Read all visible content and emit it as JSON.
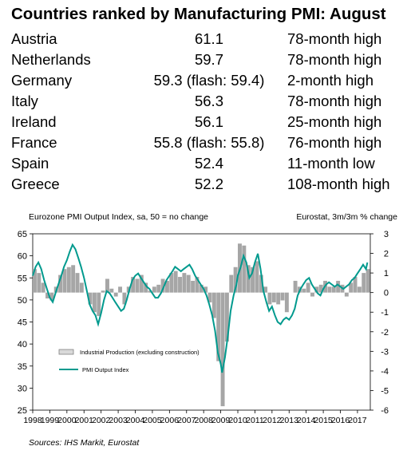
{
  "title": "Countries ranked by Manufacturing PMI: August",
  "rankings": [
    {
      "country": "Austria",
      "value": "61.1",
      "note": "78-month high"
    },
    {
      "country": "Netherlands",
      "value": "59.7",
      "note": "78-month high"
    },
    {
      "country": "Germany",
      "value": "59.3 (flash: 59.4)",
      "note": "2-month high"
    },
    {
      "country": "Italy",
      "value": "56.3",
      "note": "78-month high"
    },
    {
      "country": "Ireland",
      "value": "56.1",
      "note": "25-month high"
    },
    {
      "country": "France",
      "value": "55.8 (flash: 55.8)",
      "note": "76-month high"
    },
    {
      "country": "Spain",
      "value": "52.4",
      "note": "11-month low"
    },
    {
      "country": "Greece",
      "value": "52.2",
      "note": "108-month high"
    }
  ],
  "source": "Sources: IHS Markit, Eurostat",
  "chart_data": {
    "type": "bar+line",
    "title_left": "Eurozone PMI Output Index, sa, 50 = no change",
    "title_right": "Eurostat, 3m/3m % change",
    "x_ticks": [
      "1998",
      "1999",
      "2000",
      "2001",
      "2002",
      "2003",
      "2004",
      "2005",
      "2006",
      "2007",
      "2008",
      "2009",
      "2010",
      "2011",
      "2012",
      "2013",
      "2014",
      "2015",
      "2016",
      "2017"
    ],
    "x_range": [
      1998,
      2017.75
    ],
    "y_left": {
      "range": [
        25,
        65
      ],
      "ticks": [
        25,
        30,
        35,
        40,
        45,
        50,
        55,
        60,
        65
      ]
    },
    "y_right": {
      "range": [
        -6,
        3
      ],
      "ticks": [
        -6,
        -5,
        -4,
        -3,
        -2,
        -1,
        0,
        1,
        2,
        3
      ]
    },
    "legend": [
      "Industrial Production (excluding construction)",
      "PMI Output Index"
    ],
    "legend_position": "lower-left",
    "colors": {
      "bars": "#a6a6a6",
      "line": "#009a8e"
    },
    "series": [
      {
        "name": "Industrial Production (excluding construction)",
        "axis": "right",
        "kind": "bar",
        "points": [
          [
            1998.0,
            1.2
          ],
          [
            1998.25,
            1.0
          ],
          [
            1998.5,
            0.5
          ],
          [
            1998.75,
            -0.3
          ],
          [
            1999.0,
            -0.4
          ],
          [
            1999.25,
            0.3
          ],
          [
            1999.5,
            0.9
          ],
          [
            1999.75,
            1.2
          ],
          [
            2000.0,
            1.3
          ],
          [
            2000.25,
            1.4
          ],
          [
            2000.5,
            1.0
          ],
          [
            2000.75,
            0.5
          ],
          [
            2001.0,
            0.0
          ],
          [
            2001.25,
            -0.6
          ],
          [
            2001.5,
            -1.0
          ],
          [
            2001.75,
            -1.2
          ],
          [
            2002.0,
            0.1
          ],
          [
            2002.25,
            0.7
          ],
          [
            2002.5,
            0.2
          ],
          [
            2002.75,
            -0.2
          ],
          [
            2003.0,
            0.3
          ],
          [
            2003.25,
            -0.6
          ],
          [
            2003.5,
            0.3
          ],
          [
            2003.75,
            0.8
          ],
          [
            2004.0,
            0.7
          ],
          [
            2004.25,
            0.9
          ],
          [
            2004.5,
            0.5
          ],
          [
            2004.75,
            0.1
          ],
          [
            2005.0,
            0.3
          ],
          [
            2005.25,
            0.4
          ],
          [
            2005.5,
            0.7
          ],
          [
            2005.75,
            0.6
          ],
          [
            2006.0,
            1.0
          ],
          [
            2006.25,
            1.1
          ],
          [
            2006.5,
            0.8
          ],
          [
            2006.75,
            1.0
          ],
          [
            2007.0,
            0.9
          ],
          [
            2007.25,
            0.6
          ],
          [
            2007.5,
            0.8
          ],
          [
            2007.75,
            0.4
          ],
          [
            2008.0,
            0.3
          ],
          [
            2008.25,
            -0.5
          ],
          [
            2008.5,
            -1.3
          ],
          [
            2008.75,
            -3.5
          ],
          [
            2009.0,
            -5.8
          ],
          [
            2009.25,
            -2.5
          ],
          [
            2009.5,
            0.9
          ],
          [
            2009.75,
            1.3
          ],
          [
            2010.0,
            2.5
          ],
          [
            2010.25,
            2.4
          ],
          [
            2010.5,
            1.4
          ],
          [
            2010.75,
            1.3
          ],
          [
            2011.0,
            1.6
          ],
          [
            2011.25,
            0.9
          ],
          [
            2011.5,
            0.3
          ],
          [
            2011.75,
            -0.6
          ],
          [
            2012.0,
            -0.5
          ],
          [
            2012.25,
            -0.6
          ],
          [
            2012.5,
            -0.4
          ],
          [
            2012.75,
            -1.0
          ],
          [
            2013.0,
            0.0
          ],
          [
            2013.25,
            0.6
          ],
          [
            2013.5,
            0.3
          ],
          [
            2013.75,
            0.2
          ],
          [
            2014.0,
            0.5
          ],
          [
            2014.25,
            -0.2
          ],
          [
            2014.5,
            0.3
          ],
          [
            2014.75,
            0.4
          ],
          [
            2015.0,
            0.6
          ],
          [
            2015.25,
            0.3
          ],
          [
            2015.5,
            0.3
          ],
          [
            2015.75,
            0.6
          ],
          [
            2016.0,
            0.4
          ],
          [
            2016.25,
            -0.2
          ],
          [
            2016.5,
            0.5
          ],
          [
            2016.75,
            0.8
          ],
          [
            2017.0,
            0.3
          ],
          [
            2017.25,
            1.0
          ],
          [
            2017.5,
            1.2
          ]
        ]
      },
      {
        "name": "PMI Output Index",
        "axis": "left",
        "kind": "line",
        "points": [
          [
            1998.0,
            55.5
          ],
          [
            1998.17,
            57.5
          ],
          [
            1998.33,
            58.5
          ],
          [
            1998.5,
            57.0
          ],
          [
            1998.67,
            54.5
          ],
          [
            1998.83,
            52.5
          ],
          [
            1999.0,
            50.5
          ],
          [
            1999.17,
            49.5
          ],
          [
            1999.33,
            51.5
          ],
          [
            1999.5,
            53.5
          ],
          [
            1999.67,
            55.5
          ],
          [
            1999.83,
            57.5
          ],
          [
            2000.0,
            59.0
          ],
          [
            2000.17,
            61.0
          ],
          [
            2000.33,
            62.5
          ],
          [
            2000.5,
            61.5
          ],
          [
            2000.67,
            59.5
          ],
          [
            2000.83,
            57.5
          ],
          [
            2001.0,
            55.0
          ],
          [
            2001.17,
            52.0
          ],
          [
            2001.33,
            49.0
          ],
          [
            2001.5,
            47.5
          ],
          [
            2001.67,
            46.5
          ],
          [
            2001.83,
            44.5
          ],
          [
            2002.0,
            47.0
          ],
          [
            2002.17,
            50.0
          ],
          [
            2002.33,
            52.0
          ],
          [
            2002.5,
            51.5
          ],
          [
            2002.67,
            50.5
          ],
          [
            2002.83,
            49.5
          ],
          [
            2003.0,
            48.5
          ],
          [
            2003.17,
            47.5
          ],
          [
            2003.33,
            48.0
          ],
          [
            2003.5,
            50.0
          ],
          [
            2003.67,
            52.5
          ],
          [
            2003.83,
            54.5
          ],
          [
            2004.0,
            55.5
          ],
          [
            2004.17,
            56.0
          ],
          [
            2004.33,
            55.0
          ],
          [
            2004.5,
            54.0
          ],
          [
            2004.67,
            53.0
          ],
          [
            2004.83,
            52.5
          ],
          [
            2005.0,
            51.5
          ],
          [
            2005.17,
            50.5
          ],
          [
            2005.33,
            50.5
          ],
          [
            2005.5,
            51.5
          ],
          [
            2005.67,
            53.0
          ],
          [
            2005.83,
            54.5
          ],
          [
            2006.0,
            55.5
          ],
          [
            2006.17,
            56.5
          ],
          [
            2006.33,
            57.5
          ],
          [
            2006.5,
            57.0
          ],
          [
            2006.67,
            56.5
          ],
          [
            2006.83,
            57.0
          ],
          [
            2007.0,
            57.5
          ],
          [
            2007.17,
            58.0
          ],
          [
            2007.33,
            57.0
          ],
          [
            2007.5,
            55.5
          ],
          [
            2007.67,
            54.5
          ],
          [
            2007.83,
            53.5
          ],
          [
            2008.0,
            52.5
          ],
          [
            2008.17,
            51.0
          ],
          [
            2008.33,
            49.0
          ],
          [
            2008.5,
            46.5
          ],
          [
            2008.67,
            43.0
          ],
          [
            2008.83,
            38.0
          ],
          [
            2009.0,
            35.5
          ],
          [
            2009.08,
            33.5
          ],
          [
            2009.25,
            37.0
          ],
          [
            2009.42,
            42.0
          ],
          [
            2009.58,
            47.5
          ],
          [
            2009.75,
            51.0
          ],
          [
            2009.92,
            53.5
          ],
          [
            2010.0,
            55.5
          ],
          [
            2010.17,
            57.5
          ],
          [
            2010.33,
            60.0
          ],
          [
            2010.5,
            58.5
          ],
          [
            2010.67,
            55.0
          ],
          [
            2010.83,
            56.0
          ],
          [
            2011.0,
            58.5
          ],
          [
            2011.17,
            60.5
          ],
          [
            2011.33,
            57.0
          ],
          [
            2011.5,
            52.0
          ],
          [
            2011.67,
            49.5
          ],
          [
            2011.83,
            47.5
          ],
          [
            2012.0,
            48.5
          ],
          [
            2012.17,
            46.5
          ],
          [
            2012.33,
            45.0
          ],
          [
            2012.5,
            44.5
          ],
          [
            2012.67,
            45.5
          ],
          [
            2012.83,
            46.0
          ],
          [
            2013.0,
            45.5
          ],
          [
            2013.17,
            46.5
          ],
          [
            2013.33,
            48.0
          ],
          [
            2013.5,
            51.0
          ],
          [
            2013.67,
            52.5
          ],
          [
            2013.83,
            53.5
          ],
          [
            2014.0,
            54.5
          ],
          [
            2014.17,
            55.0
          ],
          [
            2014.33,
            53.5
          ],
          [
            2014.5,
            52.5
          ],
          [
            2014.67,
            51.5
          ],
          [
            2014.83,
            51.0
          ],
          [
            2015.0,
            52.5
          ],
          [
            2015.17,
            53.5
          ],
          [
            2015.33,
            54.0
          ],
          [
            2015.5,
            53.5
          ],
          [
            2015.67,
            53.0
          ],
          [
            2015.83,
            53.5
          ],
          [
            2016.0,
            53.0
          ],
          [
            2016.17,
            52.5
          ],
          [
            2016.33,
            53.0
          ],
          [
            2016.5,
            53.5
          ],
          [
            2016.67,
            54.5
          ],
          [
            2016.83,
            55.0
          ],
          [
            2017.0,
            56.0
          ],
          [
            2017.17,
            57.0
          ],
          [
            2017.33,
            58.0
          ],
          [
            2017.5,
            57.0
          ],
          [
            2017.58,
            58.5
          ]
        ]
      }
    ]
  }
}
